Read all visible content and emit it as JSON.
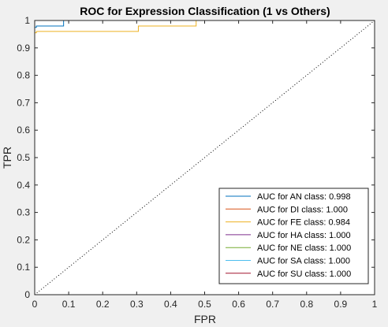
{
  "chart_data": {
    "type": "line",
    "title": "ROC for Expression Classification (1 vs Others)",
    "xlabel": "FPR",
    "ylabel": "TPR",
    "xlim": [
      0,
      1
    ],
    "ylim": [
      0,
      1
    ],
    "xticks": [
      "0",
      "0.1",
      "0.2",
      "0.3",
      "0.4",
      "0.5",
      "0.6",
      "0.7",
      "0.8",
      "0.9",
      "1"
    ],
    "yticks": [
      "0",
      "0.1",
      "0.2",
      "0.3",
      "0.4",
      "0.5",
      "0.6",
      "0.7",
      "0.8",
      "0.9",
      "1"
    ],
    "grid": false,
    "legend_position": "bottom-right",
    "reference_line": {
      "style": "dotted",
      "color": "#000000",
      "x": [
        0,
        1
      ],
      "y": [
        0,
        1
      ]
    },
    "series": [
      {
        "name": "AUC for AN class: 0.998",
        "color": "#0072BD",
        "x": [
          0,
          0,
          0.005,
          0.005,
          0.085,
          0.085,
          1
        ],
        "y": [
          0,
          0.975,
          0.975,
          0.98,
          0.98,
          1,
          1
        ]
      },
      {
        "name": "AUC for DI class: 1.000",
        "color": "#D95319",
        "x": [
          0,
          0,
          1
        ],
        "y": [
          0,
          1,
          1
        ]
      },
      {
        "name": "AUC for FE class: 0.984",
        "color": "#EDB120",
        "x": [
          0,
          0,
          0.005,
          0.005,
          0.305,
          0.305,
          0.475,
          0.475,
          1
        ],
        "y": [
          0,
          0.955,
          0.955,
          0.96,
          0.96,
          0.98,
          0.98,
          1,
          1
        ]
      },
      {
        "name": "AUC for HA class: 1.000",
        "color": "#7E2F8E",
        "x": [
          0,
          0,
          1
        ],
        "y": [
          0,
          1,
          1
        ]
      },
      {
        "name": "AUC for NE class: 1.000",
        "color": "#77AC30",
        "x": [
          0,
          0,
          1
        ],
        "y": [
          0,
          1,
          1
        ]
      },
      {
        "name": "AUC for SA class: 1.000",
        "color": "#4DBEEE",
        "x": [
          0,
          0,
          1
        ],
        "y": [
          0,
          1,
          1
        ]
      },
      {
        "name": "AUC for SU class: 1.000",
        "color": "#A2142F",
        "x": [
          0,
          0,
          1
        ],
        "y": [
          0,
          1,
          1
        ]
      }
    ]
  }
}
